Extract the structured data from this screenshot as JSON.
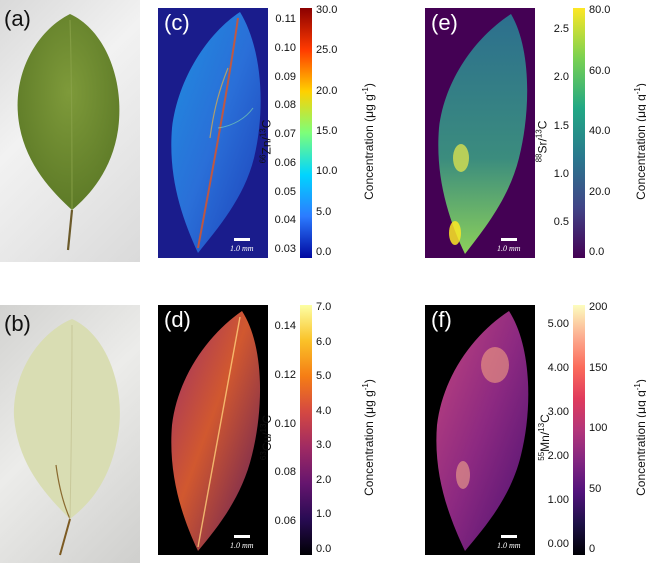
{
  "panels": {
    "a": {
      "label": "(a)"
    },
    "b": {
      "label": "(b)"
    },
    "c": {
      "label": "(c)",
      "ratio_label_html": "<sup>66</sup>Zn/<sup>13</sup>C",
      "conc_label_html": "Concentration (μg g<sup>-1</sup>)",
      "ratio_ticks": [
        "0.11",
        "0.10",
        "0.09",
        "0.08",
        "0.07",
        "0.06",
        "0.05",
        "0.04",
        "0.03"
      ],
      "conc_ticks": [
        "30.0",
        "25.0",
        "20.0",
        "15.0",
        "10.0",
        "5.0",
        "0.0"
      ],
      "scale": "1.0 mm",
      "background": "#1a1c8c",
      "colormap": "jet"
    },
    "d": {
      "label": "(d)",
      "ratio_label_html": "<sup>63</sup>Cu/<sup>13</sup>C",
      "conc_label_html": "Concentration (μg g<sup>-1</sup>)",
      "ratio_ticks": [
        "0.14",
        "0.12",
        "0.10",
        "0.08",
        "0.06"
      ],
      "conc_ticks": [
        "7.0",
        "6.0",
        "5.0",
        "4.0",
        "3.0",
        "2.0",
        "1.0",
        "0.0"
      ],
      "scale": "1.0 mm",
      "background": "#000000",
      "colormap": "inferno"
    },
    "e": {
      "label": "(e)",
      "ratio_label_html": "<sup>88</sup>Sr/<sup>13</sup>C",
      "conc_label_html": "Concentration (μg g<sup>-1</sup>)",
      "ratio_ticks": [
        "2.5",
        "2.0",
        "1.5",
        "1.0",
        "0.5"
      ],
      "conc_ticks": [
        "80.0",
        "60.0",
        "40.0",
        "20.0",
        "0.0"
      ],
      "scale": "1.0 mm",
      "background": "#440154",
      "colormap": "viridis"
    },
    "f": {
      "label": "(f)",
      "ratio_label_html": "<sup>55</sup>Mn/<sup>13</sup>C",
      "conc_label_html": "Concentration (μg g<sup>-1</sup>)",
      "ratio_ticks": [
        "5.00",
        "4.00",
        "3.00",
        "2.00",
        "1.00",
        "0.00"
      ],
      "conc_ticks": [
        "200",
        "150",
        "100",
        "50",
        "0"
      ],
      "scale": "1.0 mm",
      "background": "#000000",
      "colormap": "magma"
    }
  }
}
